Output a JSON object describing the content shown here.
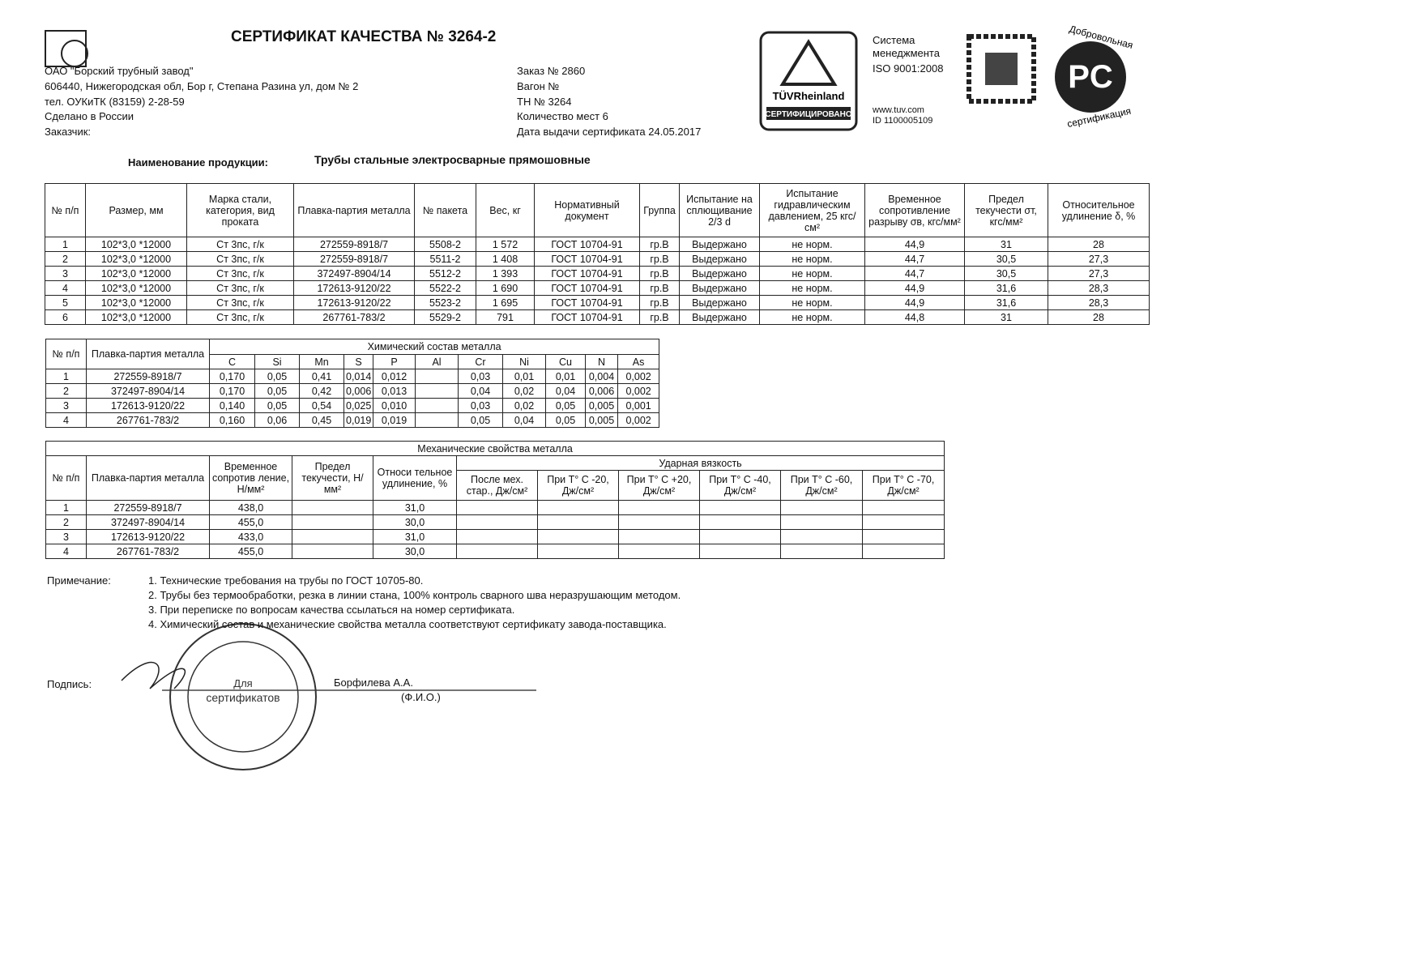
{
  "header": {
    "title": "СЕРТИФИКАТ КАЧЕСТВА № 3264-2",
    "company": [
      "ОАО \"Борский трубный завод\"",
      "606440, Нижегородская обл, Бор г, Степана Разина ул, дом № 2",
      "тел. ОУКиТК (83159) 2-28-59",
      "Сделано в России",
      "Заказчик:"
    ],
    "order": [
      "Заказ № 2860",
      "Вагон №",
      "ТН № 3264",
      "Количество мест 6",
      "Дата выдачи сертификата 24.05.2017"
    ],
    "tuv": {
      "brand": "TÜVRheinland",
      "stamp": "СЕРТИФИЦИРОВАНО",
      "system": [
        "Система",
        "менеджмента"
      ],
      "iso": "ISO 9001:2008",
      "site": "www.tuv.com",
      "id": "ID 1100005109"
    },
    "rst": {
      "top": "Добровольная",
      "bottom": "сертификация",
      "mark": "PC"
    }
  },
  "product": {
    "label": "Наименование продукции:",
    "value": "Трубы стальные электросварные прямошовные"
  },
  "table1": {
    "headers": [
      "№ п/п",
      "Размер, мм",
      "Марка стали, категория, вид проката",
      "Плавка-партия металла",
      "№ пакета",
      "Вес, кг",
      "Нормативный документ",
      "Группа",
      "Испытание на сплющивание 2/3 d",
      "Испытание гидравлическим давлением, 25 кгс/см²",
      "Временное сопротивление разрыву σв, кгс/мм²",
      "Предел текучести σт, кгс/мм²",
      "Относительное удлинение δ, %"
    ],
    "rows": [
      [
        "1",
        "102*3,0   *12000",
        "Ст 3пс, г/к",
        "272559-8918/7",
        "5508-2",
        "1 572",
        "ГОСТ 10704-91",
        "гр.В",
        "Выдержано",
        "не норм.",
        "44,9",
        "31",
        "28"
      ],
      [
        "2",
        "102*3,0   *12000",
        "Ст 3пс, г/к",
        "272559-8918/7",
        "5511-2",
        "1 408",
        "ГОСТ 10704-91",
        "гр.В",
        "Выдержано",
        "не норм.",
        "44,7",
        "30,5",
        "27,3"
      ],
      [
        "3",
        "102*3,0   *12000",
        "Ст 3пс, г/к",
        "372497-8904/14",
        "5512-2",
        "1 393",
        "ГОСТ 10704-91",
        "гр.В",
        "Выдержано",
        "не норм.",
        "44,7",
        "30,5",
        "27,3"
      ],
      [
        "4",
        "102*3,0   *12000",
        "Ст 3пс, г/к",
        "172613-9120/22",
        "5522-2",
        "1 690",
        "ГОСТ 10704-91",
        "гр.В",
        "Выдержано",
        "не норм.",
        "44,9",
        "31,6",
        "28,3"
      ],
      [
        "5",
        "102*3,0   *12000",
        "Ст 3пс, г/к",
        "172613-9120/22",
        "5523-2",
        "1 695",
        "ГОСТ 10704-91",
        "гр.В",
        "Выдержано",
        "не норм.",
        "44,9",
        "31,6",
        "28,3"
      ],
      [
        "6",
        "102*3,0   *12000",
        "Ст 3пс, г/к",
        "267761-783/2",
        "5529-2",
        "791",
        "ГОСТ 10704-91",
        "гр.В",
        "Выдержано",
        "не норм.",
        "44,8",
        "31",
        "28"
      ]
    ]
  },
  "table2": {
    "headers": [
      "№ п/п",
      "Плавка-партия металла"
    ],
    "group": "Химический состав металла",
    "elements": [
      "C",
      "Si",
      "Mn",
      "S",
      "P",
      "Al",
      "Cr",
      "Ni",
      "Cu",
      "N",
      "As"
    ],
    "rows": [
      [
        "1",
        "272559-8918/7",
        "0,170",
        "0,05",
        "0,41",
        "0,014",
        "0,012",
        null,
        "0,03",
        "0,01",
        "0,01",
        "0,004",
        "0,002"
      ],
      [
        "2",
        "372497-8904/14",
        "0,170",
        "0,05",
        "0,42",
        "0,006",
        "0,013",
        null,
        "0,04",
        "0,02",
        "0,04",
        "0,006",
        "0,002"
      ],
      [
        "3",
        "172613-9120/22",
        "0,140",
        "0,05",
        "0,54",
        "0,025",
        "0,010",
        null,
        "0,03",
        "0,02",
        "0,05",
        "0,005",
        "0,001"
      ],
      [
        "4",
        "267761-783/2",
        "0,160",
        "0,06",
        "0,45",
        "0,019",
        "0,019",
        null,
        "0,05",
        "0,04",
        "0,05",
        "0,005",
        "0,002"
      ]
    ]
  },
  "table3": {
    "title": "Механические свойства металла",
    "headers": [
      "№ п/п",
      "Плавка-партия металла",
      "Временное сопротив ление, Н/мм²",
      "Предел текучести, Н/мм²",
      "Относи тельное удлинение, %"
    ],
    "group": "Ударная вязкость",
    "impact": [
      "После мех. стар., Дж/см²",
      "При T° C -20, Дж/см²",
      "При T° C +20, Дж/см²",
      "При T° C -40, Дж/см²",
      "При T° C -60, Дж/см²",
      "При T° C -70, Дж/см²"
    ],
    "rows": [
      [
        "1",
        "272559-8918/7",
        "438,0",
        null,
        "31,0",
        null,
        null,
        null,
        null,
        null,
        null
      ],
      [
        "2",
        "372497-8904/14",
        "455,0",
        null,
        "30,0",
        null,
        null,
        null,
        null,
        null,
        null
      ],
      [
        "3",
        "172613-9120/22",
        "433,0",
        null,
        "31,0",
        null,
        null,
        null,
        null,
        null,
        null
      ],
      [
        "4",
        "267761-783/2",
        "455,0",
        null,
        "30,0",
        null,
        null,
        null,
        null,
        null,
        null
      ]
    ]
  },
  "notes": {
    "label": "Примечание:",
    "items": [
      "1. Технические требования на трубы по ГОСТ 10705-80.",
      "2. Трубы без термообработки, резка в линии стана, 100% контроль сварного шва неразрушающим методом.",
      "3. При переписке по вопросам качества ссылаться на номер сертификата.",
      "4. Химический состав и механические свойства металла соответствуют сертификату завода-поставщика."
    ]
  },
  "signature": {
    "label": "Подпись:",
    "name": "Борфилева А.А.",
    "caption": "(Ф.И.О.)",
    "stamp": [
      "Для",
      "сертификатов"
    ]
  }
}
